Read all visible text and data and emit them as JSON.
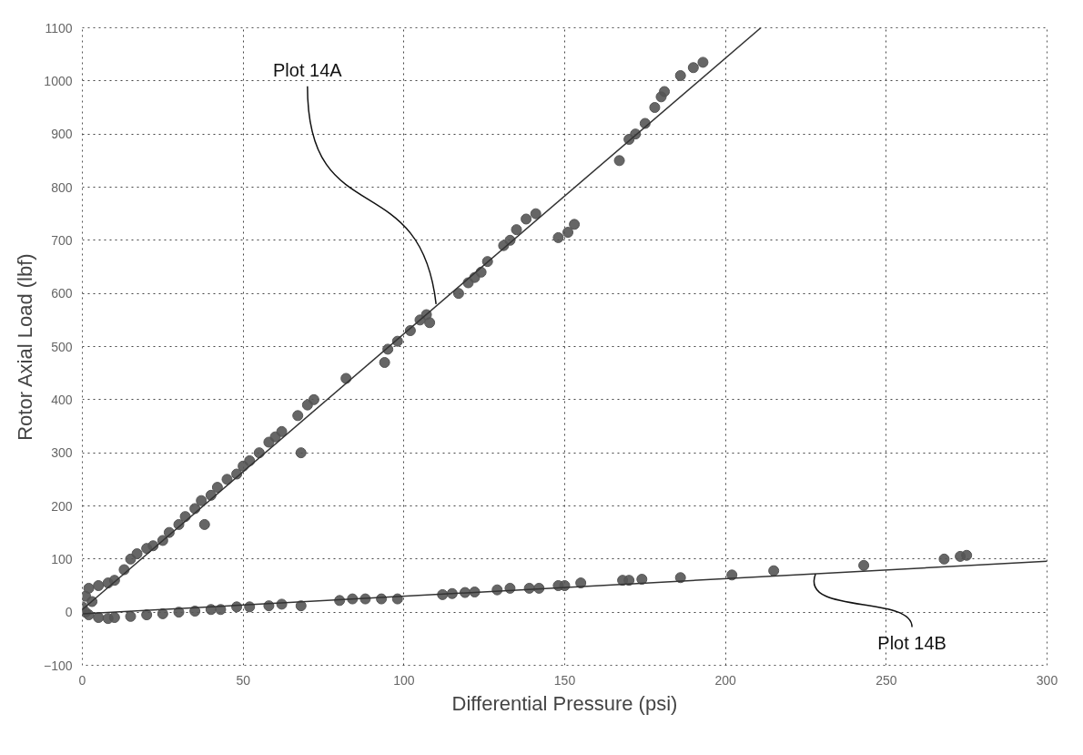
{
  "chart_data": {
    "type": "scatter",
    "xlabel": "Differential Pressure (psi)",
    "ylabel": "Rotor Axial Load (lbf)",
    "xlim": [
      0,
      300
    ],
    "ylim": [
      -100,
      1100
    ],
    "xticks": [
      0,
      50,
      100,
      150,
      200,
      250,
      300
    ],
    "yticks": [
      -100,
      0,
      100,
      200,
      300,
      400,
      500,
      600,
      700,
      800,
      900,
      1000,
      1100
    ],
    "grid": true,
    "marker": "circle",
    "line_style": "dotted",
    "series": [
      {
        "color": "#555555",
        "x": [
          1,
          2,
          3,
          5,
          8,
          10,
          13,
          15,
          17,
          20,
          22,
          25,
          27,
          30,
          32,
          35,
          37,
          38,
          40,
          42,
          45,
          48,
          50,
          52,
          55,
          58,
          60,
          62,
          67,
          70,
          72,
          68,
          82,
          94,
          95,
          98,
          102,
          105,
          107,
          108,
          117,
          120,
          122,
          124,
          126,
          131,
          133,
          135,
          138,
          141,
          148,
          151,
          153,
          167,
          170,
          172,
          175,
          178,
          180,
          181,
          186,
          190,
          193
        ],
        "values": [
          30,
          45,
          20,
          50,
          55,
          60,
          80,
          100,
          110,
          120,
          125,
          135,
          150,
          165,
          180,
          195,
          210,
          165,
          220,
          235,
          250,
          260,
          275,
          285,
          300,
          320,
          330,
          340,
          370,
          390,
          400,
          300,
          440,
          470,
          495,
          510,
          530,
          550,
          560,
          545,
          600,
          620,
          630,
          640,
          660,
          690,
          700,
          720,
          740,
          750,
          705,
          715,
          730,
          850,
          890,
          900,
          920,
          950,
          970,
          980,
          1010,
          1025,
          1035
        ]
      },
      {
        "color": "#555555",
        "x": [
          0,
          1,
          2,
          5,
          8,
          10,
          15,
          20,
          25,
          30,
          35,
          40,
          43,
          48,
          52,
          58,
          62,
          68,
          80,
          84,
          88,
          93,
          98,
          112,
          115,
          119,
          122,
          129,
          133,
          139,
          142,
          148,
          150,
          155,
          168,
          170,
          174,
          186,
          202,
          215,
          243,
          268,
          273,
          275
        ],
        "values": [
          10,
          0,
          -5,
          -10,
          -12,
          -10,
          -8,
          -5,
          -3,
          0,
          2,
          5,
          5,
          10,
          10,
          12,
          15,
          12,
          22,
          25,
          25,
          25,
          25,
          33,
          35,
          37,
          38,
          42,
          45,
          45,
          45,
          50,
          50,
          55,
          60,
          60,
          62,
          65,
          70,
          78,
          88,
          100,
          105,
          107
        ]
      },
      {
        "type": "line",
        "color": "#333333",
        "line_style": "solid",
        "marker": "none",
        "x": [
          0,
          211
        ],
        "values": [
          5,
          1100
        ]
      },
      {
        "type": "line",
        "color": "#333333",
        "line_style": "solid",
        "marker": "none",
        "x": [
          0,
          300
        ],
        "values": [
          -3,
          96
        ]
      }
    ],
    "annotations": [
      {
        "text": "Plot 14A",
        "x": 110,
        "y": 580
      },
      {
        "text": "Plot 14B",
        "x": 228,
        "y": 72
      }
    ]
  }
}
